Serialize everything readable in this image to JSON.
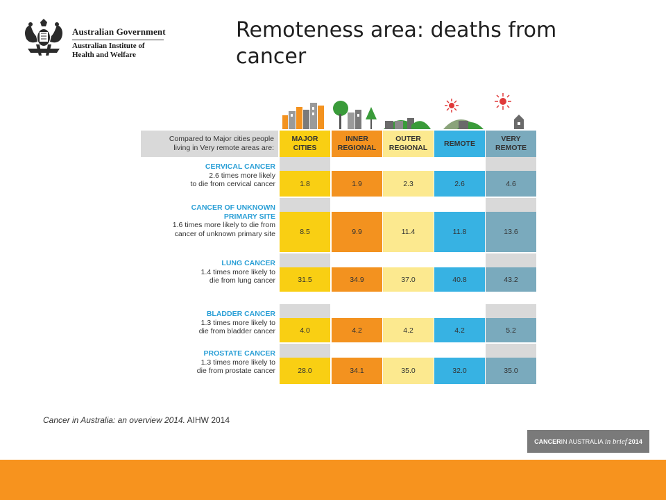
{
  "logo": {
    "line1": "Australian Government",
    "line2": "Australian Institute of",
    "line3": "Health and Welfare",
    "icon": "coat-of-arms"
  },
  "title": "Remoteness area: deaths from cancer",
  "table": {
    "header_intro_1": "Compared to Major cities people",
    "header_intro_2": "living in Very remote areas are:",
    "columns": [
      "MAJOR CITIES",
      "INNER REGIONAL",
      "OUTER REGIONAL",
      "REMOTE",
      "VERY REMOTE"
    ],
    "column_colors": [
      "#f9cf13",
      "#f3921f",
      "#fce98f",
      "#37b2e3",
      "#7aaabd"
    ],
    "spacer_colors": [
      "#d9d9d9",
      "#ffffff",
      "#ffffff",
      "#ffffff",
      "#d9d9d9"
    ],
    "rows": [
      {
        "title": "CERVICAL CANCER",
        "desc": [
          "2.6 times more likely",
          "to die from cervical cancer"
        ],
        "values": [
          "1.8",
          "1.9",
          "2.3",
          "2.6",
          "4.6"
        ]
      },
      {
        "title": "CANCER OF UNKNOWN PRIMARY SITE",
        "title_lines": [
          "CANCER OF UNKNOWN",
          "PRIMARY SITE"
        ],
        "desc": [
          "1.6 times more likely to die from",
          "cancer of unknown primary site"
        ],
        "values": [
          "8.5",
          "9.9",
          "11.4",
          "11.8",
          "13.6"
        ]
      },
      {
        "title": "LUNG CANCER",
        "desc": [
          "1.4 times more likely to",
          "die from lung cancer"
        ],
        "values": [
          "31.5",
          "34.9",
          "37.0",
          "40.8",
          "43.2"
        ]
      },
      {
        "title": "BLADDER CANCER",
        "desc": [
          "1.3 times more likely to",
          "die from bladder cancer"
        ],
        "values": [
          "4.0",
          "4.2",
          "4.2",
          "4.2",
          "5.2"
        ]
      },
      {
        "title": "PROSTATE CANCER",
        "desc": [
          "1.3 times more likely to",
          "die from prostate cancer"
        ],
        "values": [
          "28.0",
          "34.1",
          "35.0",
          "32.0",
          "35.0"
        ]
      }
    ]
  },
  "citation": {
    "italic": "Cancer in Australia: an overview 2014.",
    "plain": " AIHW 2014"
  },
  "badge": {
    "bold": "CANCER",
    "mid": " IN AUSTRALIA ",
    "italic": "in brief",
    "year": " 2014"
  },
  "colors": {
    "footer": "#f7931e",
    "title_blue": "#2a9fd6"
  }
}
